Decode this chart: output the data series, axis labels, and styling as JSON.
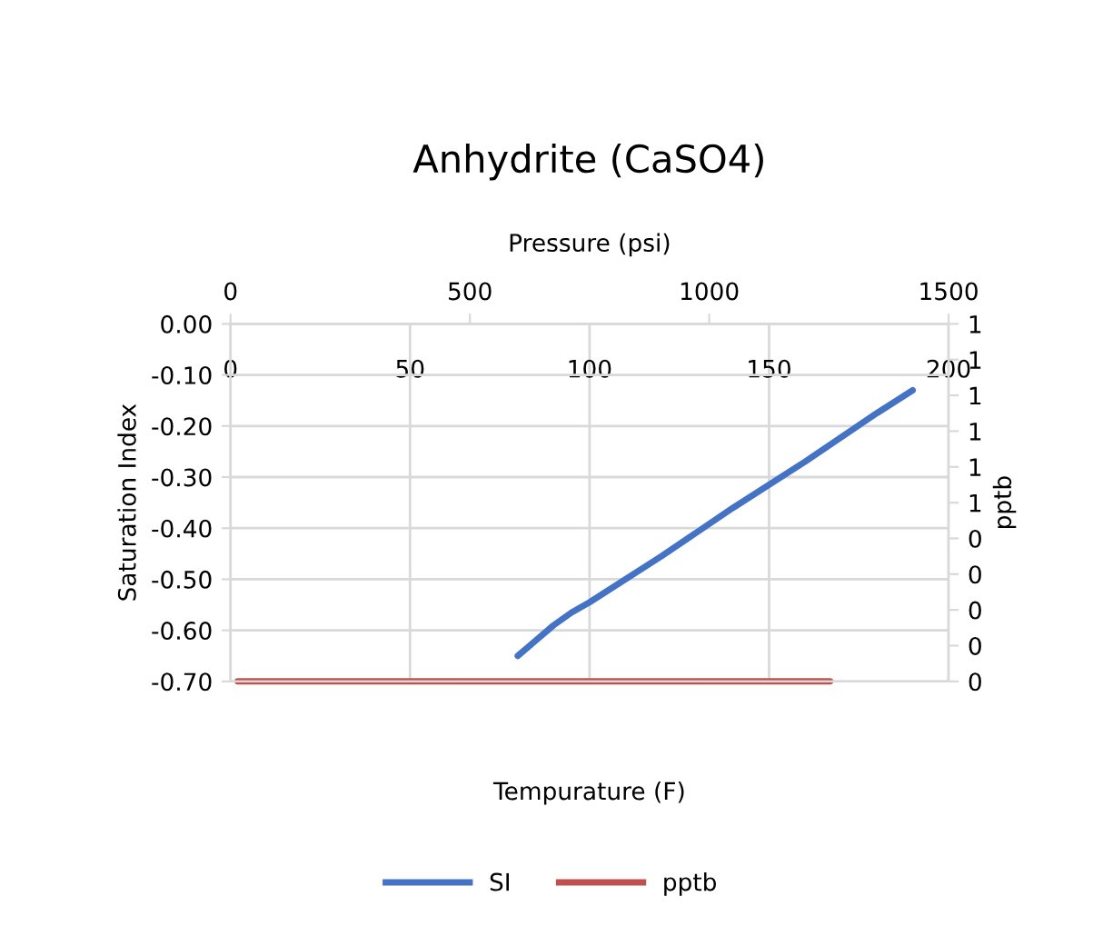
{
  "chart_data": {
    "type": "line",
    "title": "Anhydrite (CaSO4)",
    "xlabel": "Tempurature (F)",
    "x2label": "Pressure (psi)",
    "ylabel": "Saturation Index",
    "y2label": "pptb",
    "xlim": [
      0,
      200
    ],
    "xticks": [
      0,
      50,
      100,
      150,
      200
    ],
    "x2lim": [
      0,
      1500
    ],
    "x2ticks": [
      0,
      500,
      1000,
      1500
    ],
    "ylim": [
      -0.7,
      0
    ],
    "yticks": [
      {
        "value": -0.7,
        "label": "-0.70"
      },
      {
        "value": -0.6,
        "label": "-0.60"
      },
      {
        "value": -0.5,
        "label": "-0.50"
      },
      {
        "value": -0.4,
        "label": "-0.40"
      },
      {
        "value": -0.3,
        "label": "-0.30"
      },
      {
        "value": -0.2,
        "label": "-0.20"
      },
      {
        "value": -0.1,
        "label": "-0.10"
      },
      {
        "value": 0,
        "label": "0.00"
      }
    ],
    "y2lim": [
      0,
      1
    ],
    "y2ticks": [
      0,
      {
        "value": 0.1,
        "label": "0"
      },
      {
        "value": 0.2,
        "label": "0"
      },
      {
        "value": 0.3,
        "label": "0"
      },
      {
        "value": 0.4,
        "label": "0"
      },
      {
        "value": 0.5,
        "label": "1"
      },
      {
        "value": 0.6,
        "label": "1"
      },
      {
        "value": 0.7,
        "label": "1"
      },
      {
        "value": 0.8,
        "label": "1"
      },
      {
        "value": 0.9,
        "label": "1"
      },
      1
    ],
    "grid": true,
    "legend": "bottom",
    "marker": "none",
    "line_style": "solid",
    "series": [
      {
        "name": "SI",
        "color": "#4472c4",
        "x": [
          80,
          85,
          90,
          95,
          100,
          120,
          140,
          160,
          180,
          190
        ],
        "values": [
          -0.65,
          -0.62,
          -0.59,
          -0.565,
          -0.545,
          -0.455,
          -0.36,
          -0.27,
          -0.175,
          -0.13
        ]
      },
      {
        "name": "pptb",
        "color": "#c0504d",
        "axis": "y2",
        "x": [
          2,
          167
        ],
        "values": [
          0,
          0
        ]
      }
    ]
  }
}
